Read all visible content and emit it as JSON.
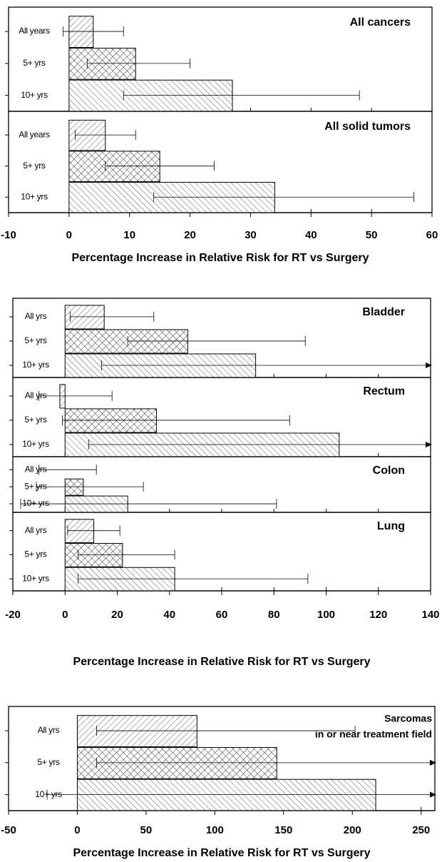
{
  "chart_data": [
    {
      "type": "bar",
      "orientation": "horizontal",
      "xlabel": "Percentage Increase in Relative Risk for RT vs Surgery",
      "xlim": [
        -10,
        60
      ],
      "xticks": [
        -10,
        0,
        10,
        20,
        30,
        40,
        50,
        60
      ],
      "hatches": [
        "/",
        "x",
        "\\"
      ],
      "panels": [
        {
          "title": "All cancers",
          "categories": [
            "All years",
            "5+ yrs",
            "10+ yrs"
          ],
          "values": [
            4,
            11,
            27
          ],
          "ci_low": [
            -1,
            3,
            9
          ],
          "ci_high": [
            9,
            20,
            48
          ]
        },
        {
          "title": "All solid tumors",
          "categories": [
            "All years",
            "5+ yrs",
            "10+ yrs"
          ],
          "values": [
            6,
            15,
            34
          ],
          "ci_low": [
            1,
            6,
            14
          ],
          "ci_high": [
            11,
            24,
            57
          ]
        }
      ]
    },
    {
      "type": "bar",
      "orientation": "horizontal",
      "xlabel": "Percentage Increase in Relative Risk for RT vs Surgery",
      "xlim": [
        -20,
        140
      ],
      "xticks": [
        -20,
        0,
        20,
        40,
        60,
        80,
        100,
        120,
        140
      ],
      "hatches": [
        "/",
        "x",
        "\\"
      ],
      "panels": [
        {
          "title": "Bladder",
          "categories": [
            "All yrs",
            "5+ yrs",
            "10+ yrs"
          ],
          "values": [
            15,
            47,
            73
          ],
          "ci_low": [
            2,
            24,
            14
          ],
          "ci_high": [
            34,
            92,
            null
          ]
        },
        {
          "title": "Rectum",
          "categories": [
            "All yrs",
            "5+ yrs",
            "10+ yrs"
          ],
          "values": [
            -2,
            35,
            105
          ],
          "ci_low": [
            -10,
            -1,
            9
          ],
          "ci_high": [
            18,
            86,
            null
          ]
        },
        {
          "title": "Colon",
          "categories": [
            "All yrs",
            "5+ yrs",
            "10+ yrs"
          ],
          "values": [
            0,
            7,
            24
          ],
          "ci_low": [
            -10,
            -11,
            -17
          ],
          "ci_high": [
            12,
            30,
            81
          ]
        },
        {
          "title": "Lung",
          "categories": [
            "All yrs",
            "5+ yrs",
            "10+ yrs"
          ],
          "values": [
            11,
            22,
            42
          ],
          "ci_low": [
            1,
            5,
            5
          ],
          "ci_high": [
            21,
            42,
            93
          ]
        }
      ]
    },
    {
      "type": "bar",
      "orientation": "horizontal",
      "xlabel": "Percentage Increase in Relative Risk for RT vs Surgery",
      "xlim": [
        -50,
        260
      ],
      "xticks": [
        -50,
        0,
        50,
        100,
        150,
        200,
        250
      ],
      "hatches": [
        "/",
        "x",
        "\\"
      ],
      "panels": [
        {
          "title": [
            "Sarcomas",
            "in or near treatment field"
          ],
          "categories": [
            "All yrs",
            "5+ yrs",
            "10+ yrs"
          ],
          "values": [
            87,
            145,
            217
          ],
          "ci_low": [
            14,
            14,
            -22
          ],
          "ci_high": [
            202,
            null,
            null
          ]
        }
      ]
    }
  ]
}
